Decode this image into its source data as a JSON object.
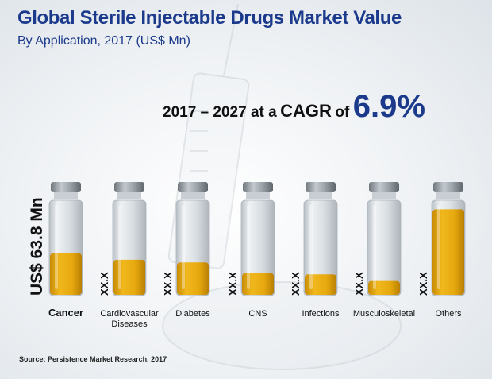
{
  "header": {
    "title": "Global Sterile Injectable Drugs Market Value",
    "subtitle": "By Application, 2017 (US$ Mn)"
  },
  "cagr": {
    "prefix": "2017 – 2027 at a",
    "word": "CAGR",
    "of": "of",
    "value": "6.9%"
  },
  "footer": {
    "source": "Source: Persistence Market Research, 2017"
  },
  "colors": {
    "title": "#1b3a8c",
    "fill": "#e0a70e",
    "glass": "#d5dadf",
    "cap": "#8a9298"
  },
  "chart_data": {
    "type": "bar",
    "categories": [
      "Cancer",
      "Cardiovascular Diseases",
      "Diabetes",
      "CNS",
      "Infections",
      "Musculoskeletal",
      "Others"
    ],
    "category_lines": [
      [
        "Cancer"
      ],
      [
        "Cardiovascular",
        "Diseases"
      ],
      [
        "Diabetes"
      ],
      [
        "CNS"
      ],
      [
        "Infections"
      ],
      [
        "Musculoskeletal"
      ],
      [
        "Others"
      ]
    ],
    "values": [
      63.8,
      54,
      50,
      34,
      32,
      22,
      130
    ],
    "data_labels": [
      "US$ 63.8 Mn",
      "XX.X",
      "XX.X",
      "XX.X",
      "XX.X",
      "XX.X",
      "XX.X"
    ],
    "ylim": [
      0,
      140
    ]
  }
}
